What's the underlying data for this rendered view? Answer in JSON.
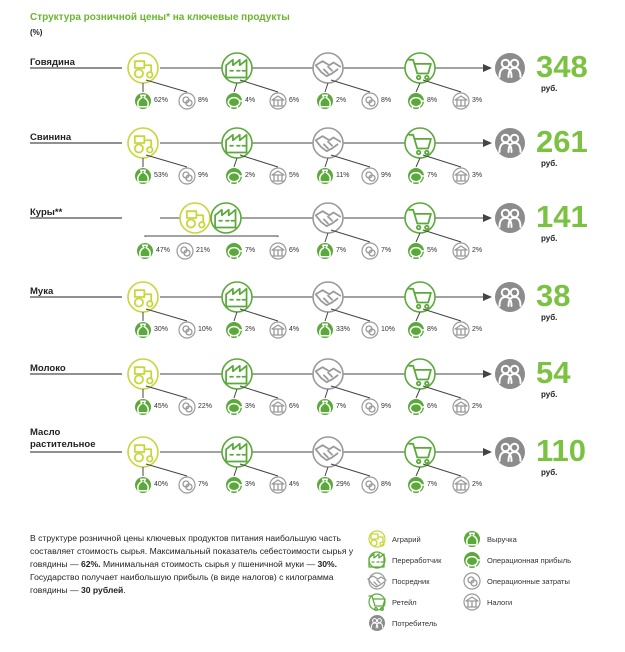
{
  "title": "Структура розничной цены* на ключевые продукты",
  "unit": "(%)",
  "currency_label": "руб.",
  "rows": [
    {
      "name": "Говядина",
      "price": "348",
      "shares": [
        "62%",
        "8%",
        "4%",
        "6%",
        "2%",
        "8%",
        "8%",
        "3%"
      ]
    },
    {
      "name": "Свинина",
      "price": "261",
      "shares": [
        "53%",
        "9%",
        "2%",
        "5%",
        "11%",
        "9%",
        "7%",
        "3%"
      ]
    },
    {
      "name": "Куры**",
      "price": "141",
      "shares": [
        "47%",
        "21%",
        "7%",
        "6%",
        "7%",
        "7%",
        "5%",
        "2%"
      ]
    },
    {
      "name": "Мука",
      "price": "38",
      "shares": [
        "30%",
        "10%",
        "2%",
        "4%",
        "33%",
        "10%",
        "8%",
        "2%"
      ]
    },
    {
      "name": "Молоко",
      "price": "54",
      "shares": [
        "45%",
        "22%",
        "3%",
        "6%",
        "7%",
        "9%",
        "6%",
        "2%"
      ]
    },
    {
      "name": "Масло растительное",
      "price": "110",
      "shares": [
        "40%",
        "7%",
        "3%",
        "4%",
        "29%",
        "8%",
        "7%",
        "2%"
      ]
    }
  ],
  "footer": {
    "p1": "В структуре розничной цены ключевых продуктов питания наибольшую часть составляет стоимость сырья. Максимальный показатель себестоимости сырья у говядины — ",
    "b1": "62%.",
    "p2": " Минимальная стоимость сырья у пшеничной муки — ",
    "b2": "30%.",
    "p3": " Государство получает наибольшую прибыль (в виде налогов) с килограмма говядины — ",
    "b3": "30 рублей",
    "p4": "."
  },
  "legend": {
    "farmer": "Аграрий",
    "processor": "Переработчик",
    "intermediary": "Посредник",
    "retail": "Ретейл",
    "consumer": "Потребитель",
    "revenue": "Выручка",
    "op_profit": "Операционная прибыль",
    "op_costs": "Операционные затраты",
    "taxes": "Налоги"
  },
  "colors": {
    "farmer": "#c9d63a",
    "green": "#5aaa3a",
    "grey": "#9a9a9a",
    "consumer": "#8c8c8c",
    "price": "#7cc242",
    "title": "#6bb52f"
  }
}
